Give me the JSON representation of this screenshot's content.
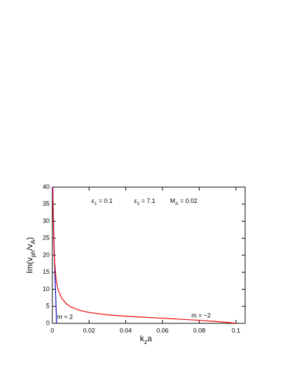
{
  "chart_data": {
    "type": "line",
    "xlabel": [
      {
        "text": "k"
      },
      {
        "text": "z",
        "sub": true
      },
      {
        "text": "a"
      }
    ],
    "ylabel": [
      {
        "text": "Im(v"
      },
      {
        "text": "ph",
        "sub": true
      },
      {
        "text": "/v"
      },
      {
        "text": "A",
        "sub": true
      },
      {
        "text": ")"
      }
    ],
    "annotations": [
      [
        {
          "text": "ε"
        },
        {
          "text": "1",
          "sub": true
        },
        {
          "text": " = 0.1"
        }
      ],
      [
        {
          "text": "ε"
        },
        {
          "text": "2",
          "sub": true
        },
        {
          "text": " = 7.1"
        }
      ],
      [
        {
          "text": "M"
        },
        {
          "text": "A",
          "sub": true
        },
        {
          "text": " = 0.02"
        }
      ]
    ],
    "series": [
      {
        "name": "m = 2",
        "color": "#0000cc",
        "x": [
          0,
          0.0005,
          0.001,
          0.0015,
          0.002,
          0.0023
        ],
        "values": [
          40,
          32,
          22,
          13,
          5,
          0
        ]
      },
      {
        "name": "m = −2",
        "color": "#ee0000",
        "x": [
          0.0003,
          0.0005,
          0.001,
          0.002,
          0.003,
          0.005,
          0.0075,
          0.01,
          0.015,
          0.02,
          0.03,
          0.04,
          0.05,
          0.06,
          0.07,
          0.08,
          0.09,
          0.1
        ],
        "values": [
          40,
          30,
          20,
          13,
          10,
          7.5,
          5.8,
          4.8,
          3.8,
          3.2,
          2.5,
          2.1,
          1.8,
          1.5,
          1.2,
          0.9,
          0.5,
          0.05
        ]
      }
    ],
    "xlim": [
      0,
      0.105
    ],
    "xticks": [
      0,
      0.02,
      0.04,
      0.06,
      0.08,
      0.1
    ],
    "ylim": [
      0,
      40
    ],
    "yticks": [
      0,
      5,
      10,
      15,
      20,
      25,
      30,
      35,
      40
    ]
  }
}
